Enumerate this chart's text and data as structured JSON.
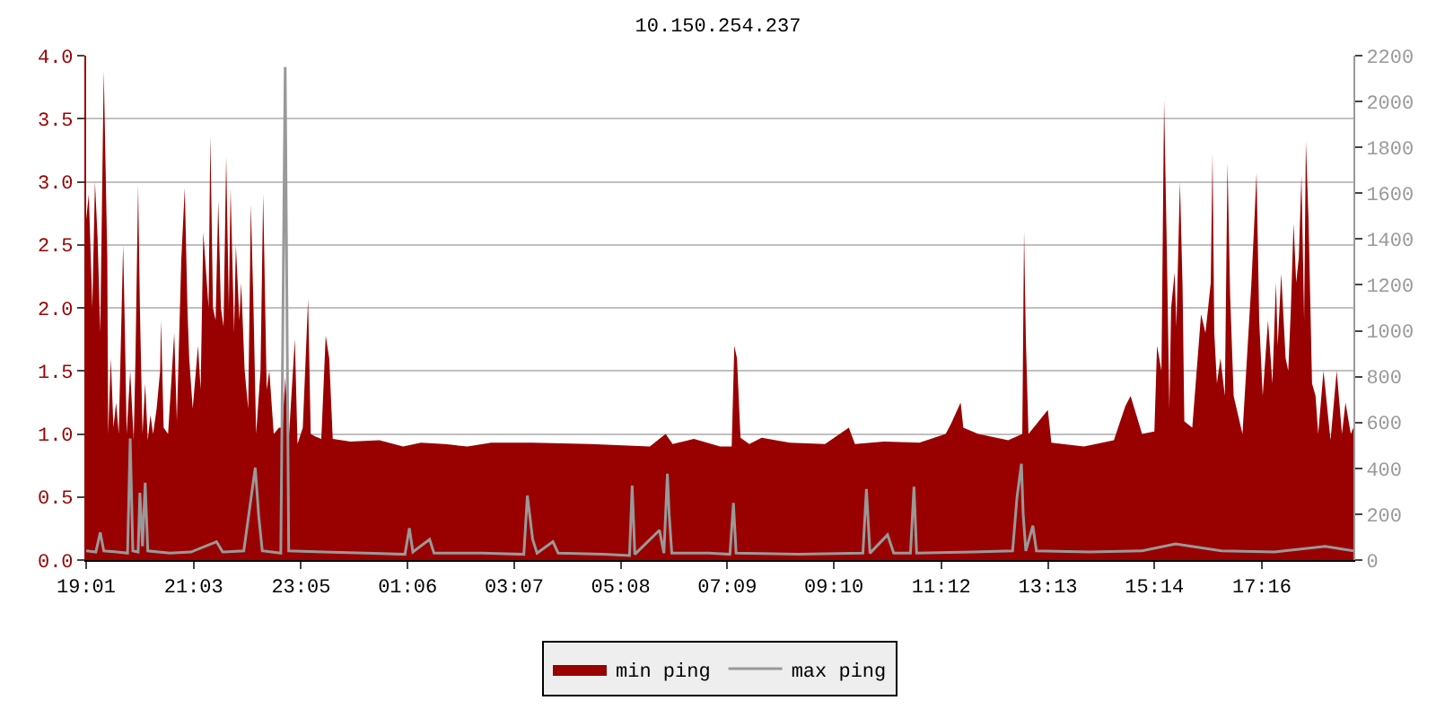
{
  "chart_data": {
    "type": "area",
    "title": "10.150.254.237",
    "xlim": [
      "2000-01-01T19:01",
      "2000-01-02T19:00"
    ],
    "xticks": [
      {
        "value": "2000-01-01T19:01",
        "label": "19:01"
      },
      {
        "value": "2000-01-01T21:03",
        "label": "21:03"
      },
      {
        "value": "2000-01-01T23:05",
        "label": "23:05"
      },
      {
        "value": "2000-01-02T01:06",
        "label": "01:06"
      },
      {
        "value": "2000-01-02T03:07",
        "label": "03:07"
      },
      {
        "value": "2000-01-02T05:08",
        "label": "05:08"
      },
      {
        "value": "2000-01-02T07:09",
        "label": "07:09"
      },
      {
        "value": "2000-01-02T09:10",
        "label": "09:10"
      },
      {
        "value": "2000-01-02T11:12",
        "label": "11:12"
      },
      {
        "value": "2000-01-02T13:13",
        "label": "13:13"
      },
      {
        "value": "2000-01-02T15:14",
        "label": "15:14"
      },
      {
        "value": "2000-01-02T17:16",
        "label": "17:16"
      }
    ],
    "ylim": [
      0,
      4.0
    ],
    "yticks": [
      {
        "value": 0,
        "label": "0.0"
      },
      {
        "value": 0.5,
        "label": "0.5"
      },
      {
        "value": 1,
        "label": "1.0"
      },
      {
        "value": 1.5,
        "label": "1.5"
      },
      {
        "value": 2,
        "label": "2.0"
      },
      {
        "value": 2.5,
        "label": "2.5"
      },
      {
        "value": 3,
        "label": "3.0"
      },
      {
        "value": 3.5,
        "label": "3.5"
      },
      {
        "value": 4,
        "label": "4.0"
      }
    ],
    "y2lim": [
      0,
      2200
    ],
    "y2ticks": [
      0,
      200,
      400,
      600,
      800,
      1000,
      1200,
      1400,
      1600,
      1800,
      2000,
      2200
    ],
    "grid": "y",
    "legend": "bottom",
    "series": [
      {
        "name": "min ping",
        "color": "#990000",
        "x": [
          "2000-01-01T19:01",
          "2000-01-01T19:04",
          "2000-01-01T19:08",
          "2000-01-01T19:11",
          "2000-01-01T19:14",
          "2000-01-01T19:17",
          "2000-01-01T19:21",
          "2000-01-01T19:25",
          "2000-01-01T19:26",
          "2000-01-01T19:29",
          "2000-01-01T19:32",
          "2000-01-01T19:35",
          "2000-01-01T19:38",
          "2000-01-01T19:43",
          "2000-01-01T19:45",
          "2000-01-01T19:47",
          "2000-01-01T19:51",
          "2000-01-01T19:55",
          "2000-01-01T19:57",
          "2000-01-01T20:00",
          "2000-01-01T20:02",
          "2000-01-01T20:05",
          "2000-01-01T20:08",
          "2000-01-01T20:11",
          "2000-01-01T20:14",
          "2000-01-01T20:17",
          "2000-01-01T20:21",
          "2000-01-01T20:25",
          "2000-01-01T20:26",
          "2000-01-01T20:29",
          "2000-01-01T20:34",
          "2000-01-01T20:38",
          "2000-01-01T20:41",
          "2000-01-01T20:44",
          "2000-01-01T20:49",
          "2000-01-01T20:53",
          "2000-01-01T20:56",
          "2000-01-01T20:58",
          "2000-01-01T21:02",
          "2000-01-01T21:08",
          "2000-01-01T21:11",
          "2000-01-01T21:14",
          "2000-01-01T21:16",
          "2000-01-01T21:20",
          "2000-01-01T21:22",
          "2000-01-01T21:25",
          "2000-01-01T21:28",
          "2000-01-01T21:31",
          "2000-01-01T21:34",
          "2000-01-01T21:37",
          "2000-01-01T21:40",
          "2000-01-01T21:43",
          "2000-01-01T21:45",
          "2000-01-01T21:49",
          "2000-01-01T21:51",
          "2000-01-01T21:55",
          "2000-01-01T21:57",
          "2000-01-01T22:01",
          "2000-01-01T22:05",
          "2000-01-01T22:08",
          "2000-01-01T22:11",
          "2000-01-01T22:14",
          "2000-01-01T22:19",
          "2000-01-01T22:22",
          "2000-01-01T22:26",
          "2000-01-01T22:29",
          "2000-01-01T22:34",
          "2000-01-01T22:40",
          "2000-01-01T22:44",
          "2000-01-01T22:47",
          "2000-01-01T22:51",
          "2000-01-01T22:58",
          "2000-01-01T23:01",
          "2000-01-01T23:07",
          "2000-01-01T23:13",
          "2000-01-01T23:16",
          "2000-01-01T23:21",
          "2000-01-01T23:28",
          "2000-01-01T23:33",
          "2000-01-01T23:37",
          "2000-01-01T23:41",
          "2000-01-02T00:01",
          "2000-01-02T00:34",
          "2000-01-02T01:01",
          "2000-01-02T01:21",
          "2000-01-02T01:48",
          "2000-01-02T02:14",
          "2000-01-02T02:41",
          "2000-01-02T03:28",
          "2000-01-02T04:34",
          "2000-01-02T05:41",
          "2000-01-02T05:59",
          "2000-01-02T06:07",
          "2000-01-02T06:31",
          "2000-01-02T07:01",
          "2000-01-02T07:14",
          "2000-01-02T07:17",
          "2000-01-02T07:20",
          "2000-01-02T07:24",
          "2000-01-02T07:34",
          "2000-01-02T07:48",
          "2000-01-02T08:20",
          "2000-01-02T09:00",
          "2000-01-02T09:27",
          "2000-01-02T09:34",
          "2000-01-02T10:07",
          "2000-01-02T10:47",
          "2000-01-02T11:17",
          "2000-01-02T11:23",
          "2000-01-02T11:34",
          "2000-01-02T11:37",
          "2000-01-02T11:54",
          "2000-01-02T12:28",
          "2000-01-02T12:44",
          "2000-01-02T12:46",
          "2000-01-02T12:48",
          "2000-01-02T12:51",
          "2000-01-02T13:13",
          "2000-01-02T13:17",
          "2000-01-02T13:54",
          "2000-01-02T14:28",
          "2000-01-02T14:41",
          "2000-01-02T14:47",
          "2000-01-02T15:00",
          "2000-01-02T15:14",
          "2000-01-02T15:17",
          "2000-01-02T15:22",
          "2000-01-02T15:25",
          "2000-01-02T15:28",
          "2000-01-02T15:31",
          "2000-01-02T15:33",
          "2000-01-02T15:37",
          "2000-01-02T15:39",
          "2000-01-02T15:43",
          "2000-01-02T15:46",
          "2000-01-02T15:48",
          "2000-01-02T15:57",
          "2000-01-02T16:07",
          "2000-01-02T16:12",
          "2000-01-02T16:18",
          "2000-01-02T16:20",
          "2000-01-02T16:22",
          "2000-01-02T16:25",
          "2000-01-02T16:29",
          "2000-01-02T16:34",
          "2000-01-02T16:37",
          "2000-01-02T16:40",
          "2000-01-02T16:44",
          "2000-01-02T16:49",
          "2000-01-02T16:54",
          "2000-01-02T17:04",
          "2000-01-02T17:07",
          "2000-01-02T17:10",
          "2000-01-02T17:13",
          "2000-01-02T17:17",
          "2000-01-02T17:23",
          "2000-01-02T17:28",
          "2000-01-02T17:32",
          "2000-01-02T17:34",
          "2000-01-02T17:38",
          "2000-01-02T17:43",
          "2000-01-02T17:46",
          "2000-01-02T17:49",
          "2000-01-02T17:52",
          "2000-01-02T17:55",
          "2000-01-02T17:58",
          "2000-01-02T18:01",
          "2000-01-02T18:04",
          "2000-01-02T18:06",
          "2000-01-02T18:09",
          "2000-01-02T18:13",
          "2000-01-02T18:17",
          "2000-01-02T18:20",
          "2000-01-02T18:26",
          "2000-01-02T18:34",
          "2000-01-02T18:41",
          "2000-01-02T18:47",
          "2000-01-02T18:51",
          "2000-01-02T18:57",
          "2000-01-02T19:00"
        ],
        "values": [
          2.7,
          2.9,
          2.0,
          3.0,
          2.55,
          1.8,
          3.88,
          2.4,
          1.0,
          1.6,
          1.05,
          1.25,
          1.0,
          2.5,
          1.8,
          1.0,
          1.5,
          0.95,
          1.6,
          2.97,
          2.0,
          1.0,
          1.4,
          0.95,
          1.15,
          1.0,
          1.2,
          1.5,
          1.9,
          1.05,
          1.0,
          1.45,
          1.8,
          1.1,
          2.38,
          2.95,
          2.0,
          1.6,
          1.2,
          1.7,
          1.35,
          2.6,
          2.4,
          2.0,
          3.37,
          2.0,
          1.9,
          2.85,
          2.0,
          1.85,
          3.2,
          2.0,
          2.95,
          1.8,
          2.5,
          1.9,
          2.2,
          1.5,
          1.2,
          2.82,
          2.0,
          1.0,
          1.5,
          2.9,
          1.35,
          1.5,
          1.0,
          1.05,
          1.05,
          1.45,
          0.95,
          1.75,
          0.92,
          1.05,
          2.07,
          1.0,
          0.98,
          0.96,
          1.78,
          1.6,
          0.96,
          0.94,
          0.95,
          0.9,
          0.93,
          0.92,
          0.9,
          0.93,
          0.93,
          0.92,
          0.9,
          1.0,
          0.92,
          0.96,
          0.9,
          0.9,
          1.7,
          1.6,
          0.97,
          0.92,
          0.97,
          0.93,
          0.92,
          1.05,
          0.92,
          0.94,
          0.93,
          1.0,
          1.08,
          1.25,
          1.05,
          1.0,
          0.95,
          1.0,
          2.61,
          1.76,
          1.0,
          1.19,
          0.93,
          0.9,
          0.95,
          1.22,
          1.3,
          1.0,
          1.02,
          1.7,
          1.5,
          3.65,
          2.5,
          1.2,
          2.0,
          2.28,
          1.85,
          3.0,
          2.16,
          1.1,
          1.05,
          1.95,
          1.8,
          2.2,
          3.23,
          1.8,
          1.4,
          1.6,
          1.3,
          3.15,
          2.1,
          1.3,
          1.15,
          1.0,
          2.18,
          2.61,
          3.07,
          1.9,
          1.3,
          1.9,
          1.4,
          2.2,
          1.7,
          2.27,
          1.6,
          1.5,
          2.0,
          2.67,
          2.2,
          2.4,
          3.05,
          1.9,
          3.32,
          2.7,
          1.4,
          1.3,
          1.0,
          1.5,
          0.95,
          1.5,
          1.0,
          1.25,
          1.0,
          1.05
        ]
      },
      {
        "name": "max ping",
        "type": "line",
        "axis": "y2",
        "color": "#999999",
        "x": [
          "2000-01-01T19:01",
          "2000-01-01T19:12",
          "2000-01-01T19:17",
          "2000-01-01T19:21",
          "2000-01-01T19:36",
          "2000-01-01T19:48",
          "2000-01-01T19:51",
          "2000-01-01T19:54",
          "2000-01-01T20:00",
          "2000-01-01T20:02",
          "2000-01-01T20:05",
          "2000-01-01T20:08",
          "2000-01-01T20:11",
          "2000-01-01T20:36",
          "2000-01-01T21:00",
          "2000-01-01T21:29",
          "2000-01-01T21:36",
          "2000-01-01T22:00",
          "2000-01-01T22:13",
          "2000-01-01T22:17",
          "2000-01-01T22:21",
          "2000-01-01T22:42",
          "2000-01-01T22:47",
          "2000-01-01T22:51",
          "2000-01-01T23:30",
          "2000-01-02T00:18",
          "2000-01-02T01:03",
          "2000-01-02T01:08",
          "2000-01-02T01:12",
          "2000-01-02T01:31",
          "2000-01-02T01:36",
          "2000-01-02T02:30",
          "2000-01-02T03:18",
          "2000-01-02T03:22",
          "2000-01-02T03:28",
          "2000-01-02T03:33",
          "2000-01-02T03:51",
          "2000-01-02T03:57",
          "2000-01-02T04:48",
          "2000-01-02T05:18",
          "2000-01-02T05:21",
          "2000-01-02T05:24",
          "2000-01-02T05:52",
          "2000-01-02T05:57",
          "2000-01-02T06:01",
          "2000-01-02T06:03",
          "2000-01-02T06:06",
          "2000-01-02T06:48",
          "2000-01-02T07:12",
          "2000-01-02T07:16",
          "2000-01-02T07:19",
          "2000-01-02T08:30",
          "2000-01-02T09:43",
          "2000-01-02T09:47",
          "2000-01-02T09:51",
          "2000-01-02T10:11",
          "2000-01-02T10:18",
          "2000-01-02T10:37",
          "2000-01-02T10:41",
          "2000-01-02T10:44",
          "2000-01-02T11:48",
          "2000-01-02T12:33",
          "2000-01-02T12:38",
          "2000-01-02T12:43",
          "2000-01-02T12:45",
          "2000-01-02T12:48",
          "2000-01-02T12:56",
          "2000-01-02T13:00",
          "2000-01-02T14:00",
          "2000-01-02T15:00",
          "2000-01-02T15:38",
          "2000-01-02T16:30",
          "2000-01-02T17:30",
          "2000-01-02T18:28",
          "2000-01-02T19:00"
        ],
        "values": [
          40,
          35,
          120,
          40,
          35,
          30,
          530,
          40,
          35,
          293,
          60,
          337,
          40,
          30,
          35,
          80,
          35,
          40,
          403,
          190,
          40,
          30,
          2150,
          40,
          35,
          30,
          25,
          139,
          35,
          90,
          30,
          30,
          25,
          281,
          90,
          30,
          80,
          30,
          25,
          20,
          325,
          25,
          130,
          30,
          376,
          200,
          30,
          30,
          25,
          249,
          30,
          25,
          30,
          310,
          30,
          110,
          30,
          30,
          320,
          30,
          35,
          40,
          274,
          420,
          200,
          40,
          150,
          40,
          35,
          40,
          70,
          40,
          35,
          60,
          40
        ]
      }
    ]
  }
}
